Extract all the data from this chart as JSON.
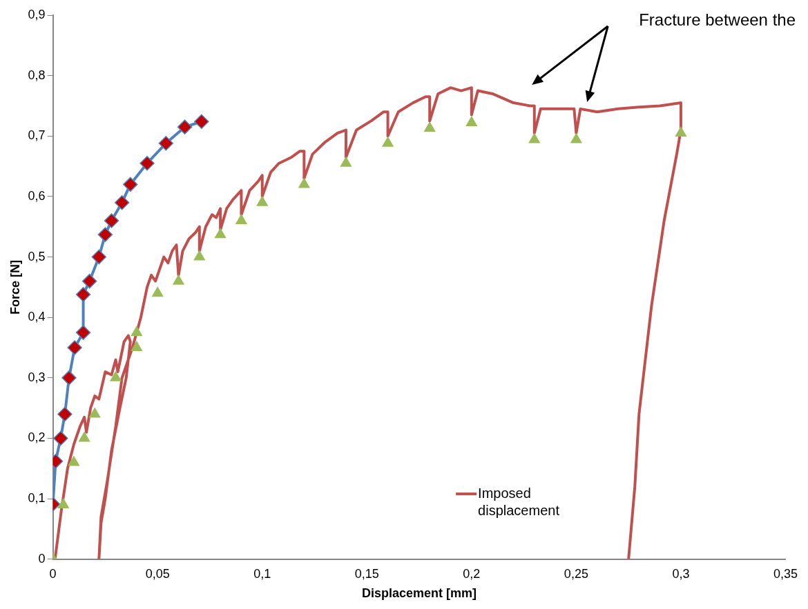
{
  "chart_data": {
    "type": "line",
    "xlabel": "Displacement [mm]",
    "ylabel": "Force [N]",
    "xlim": [
      0,
      0.35
    ],
    "xticks": [
      0,
      {
        "value": 0.05,
        "label": "0,05"
      },
      {
        "value": 0.1,
        "label": "0,1"
      },
      {
        "value": 0.15,
        "label": "0,15"
      },
      {
        "value": 0.2,
        "label": "0,2"
      },
      {
        "value": 0.25,
        "label": "0,25"
      },
      {
        "value": 0.3,
        "label": "0,3"
      },
      {
        "value": 0.35,
        "label": "0,35"
      }
    ],
    "ylim": [
      0,
      0.9
    ],
    "yticks": [
      0,
      {
        "value": 0.1,
        "label": "0,1"
      },
      {
        "value": 0.2,
        "label": "0,2"
      },
      {
        "value": 0.3,
        "label": "0,3"
      },
      {
        "value": 0.4,
        "label": "0,4"
      },
      {
        "value": 0.5,
        "label": "0,5"
      },
      {
        "value": 0.6,
        "label": "0,6"
      },
      {
        "value": 0.7,
        "label": "0,7"
      },
      {
        "value": 0.8,
        "label": "0,8"
      },
      {
        "value": 0.9,
        "label": "0,9"
      }
    ],
    "grid": false,
    "legend": "bottom",
    "annotations": [
      "Fracture between the"
    ],
    "series": [
      {
        "type": "line",
        "color": "#4f81bd",
        "marker": "diamond",
        "colors": [
          "#c00000",
          "#c00000",
          "#c00000",
          "#c00000",
          "#c00000",
          "#c00000",
          "#c00000",
          "#c00000",
          "#c00000",
          "#c00000",
          "#c00000",
          "#c00000",
          "#c00000",
          "#c00000",
          "#c00000",
          "#c00000",
          "#c00000",
          "#c00000"
        ],
        "x": [
          0,
          0.0013,
          0.0037,
          0.0057,
          0.0077,
          0.0104,
          0.0145,
          0.0145,
          0.0175,
          0.022,
          0.025,
          0.028,
          0.033,
          0.037,
          0.045,
          0.054,
          0.063,
          0.071
        ],
        "values": [
          0.091,
          0.162,
          0.2,
          0.24,
          0.3,
          0.35,
          0.375,
          0.438,
          0.46,
          0.5,
          0.537,
          0.56,
          0.59,
          0.62,
          0.655,
          0.688,
          0.715,
          0.724
        ]
      },
      {
        "type": "line",
        "name": "Imposed displacement",
        "color": "#c0504d",
        "marker": "none",
        "x": [
          0.001,
          0.004,
          0.007,
          0.01,
          0.013,
          0.015,
          0.016,
          0.018,
          0.02,
          0.022,
          0.025,
          0.028,
          0.03,
          0.031,
          0.034,
          0.036,
          0.037,
          0.035,
          0.032,
          0.028,
          0.025,
          0.023,
          0.022,
          0.023,
          0.026,
          0.03,
          0.033,
          0.038,
          0.042,
          0.045,
          0.047,
          0.049,
          0.051,
          0.053,
          0.055,
          0.057,
          0.059,
          0.06,
          0.062,
          0.065,
          0.068,
          0.07,
          0.07,
          0.073,
          0.076,
          0.078,
          0.08,
          0.08,
          0.083,
          0.086,
          0.09,
          0.09,
          0.094,
          0.098,
          0.1,
          0.1,
          0.104,
          0.108,
          0.114,
          0.118,
          0.12,
          0.12,
          0.124,
          0.13,
          0.136,
          0.14,
          0.14,
          0.145,
          0.152,
          0.158,
          0.16,
          0.16,
          0.165,
          0.172,
          0.178,
          0.18,
          0.18,
          0.184,
          0.19,
          0.195,
          0.2,
          0.2,
          0.203,
          0.21,
          0.22,
          0.228,
          0.23,
          0.23,
          0.233,
          0.24,
          0.249,
          0.25,
          0.252,
          0.26,
          0.27,
          0.28,
          0.29,
          0.3,
          0.3,
          0.298,
          0.292,
          0.286,
          0.28,
          0.278,
          0.275
        ],
        "values": [
          0,
          0.08,
          0.15,
          0.19,
          0.22,
          0.235,
          0.21,
          0.25,
          0.27,
          0.265,
          0.31,
          0.305,
          0.33,
          0.31,
          0.36,
          0.37,
          0.36,
          0.3,
          0.25,
          0.18,
          0.1,
          0.06,
          0,
          0.07,
          0.13,
          0.22,
          0.3,
          0.35,
          0.4,
          0.45,
          0.47,
          0.46,
          0.48,
          0.5,
          0.49,
          0.51,
          0.52,
          0.47,
          0.51,
          0.53,
          0.54,
          0.55,
          0.51,
          0.55,
          0.57,
          0.565,
          0.58,
          0.545,
          0.58,
          0.595,
          0.61,
          0.57,
          0.61,
          0.625,
          0.635,
          0.6,
          0.64,
          0.655,
          0.665,
          0.675,
          0.675,
          0.63,
          0.67,
          0.69,
          0.705,
          0.71,
          0.665,
          0.71,
          0.725,
          0.74,
          0.74,
          0.7,
          0.74,
          0.755,
          0.765,
          0.765,
          0.725,
          0.77,
          0.78,
          0.775,
          0.78,
          0.735,
          0.775,
          0.77,
          0.755,
          0.75,
          0.75,
          0.705,
          0.745,
          0.745,
          0.745,
          0.705,
          0.745,
          0.74,
          0.745,
          0.748,
          0.75,
          0.755,
          0.71,
          0.67,
          0.56,
          0.42,
          0.24,
          0.12,
          0
        ]
      },
      {
        "type": "scatter",
        "color": "#9bbb59",
        "marker": "triangle",
        "x": [
          0,
          0.005,
          0.01,
          0.015,
          0.02,
          0.03,
          0.04,
          0.04,
          0.05,
          0.06,
          0.07,
          0.08,
          0.09,
          0.1,
          0.12,
          0.14,
          0.16,
          0.18,
          0.2,
          0.23,
          0.25,
          0.3
        ],
        "values": [
          0,
          0.09,
          0.16,
          0.2,
          0.24,
          0.3,
          0.35,
          0.375,
          0.44,
          0.46,
          0.5,
          0.537,
          0.56,
          0.59,
          0.62,
          0.655,
          0.688,
          0.713,
          0.722,
          0.694,
          0.694,
          0.705
        ]
      }
    ]
  }
}
